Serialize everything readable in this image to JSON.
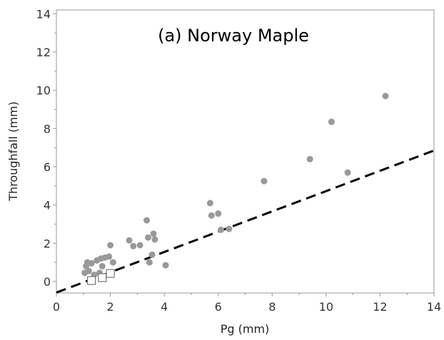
{
  "chart_data": {
    "type": "scatter",
    "title": "(a) Norway Maple",
    "xlabel": "Pg (mm)",
    "ylabel": "Throughfall (mm)",
    "xlim": [
      0,
      14
    ],
    "ylim": [
      -0.6,
      14.2
    ],
    "x_ticks": [
      "0",
      "2",
      "4",
      "6",
      "8",
      "10",
      "12",
      "14"
    ],
    "y_ticks": [
      "0",
      "2",
      "4",
      "6",
      "8",
      "10",
      "12",
      "14"
    ],
    "grid": false,
    "series": [
      {
        "marker": "filled-circle",
        "color": "#999999",
        "points": [
          [
            1.05,
            0.45
          ],
          [
            1.1,
            0.8
          ],
          [
            1.15,
            1.0
          ],
          [
            1.2,
            0.55
          ],
          [
            1.3,
            0.95
          ],
          [
            1.4,
            0.35
          ],
          [
            1.5,
            1.1
          ],
          [
            1.6,
            0.45
          ],
          [
            1.65,
            1.2
          ],
          [
            1.7,
            0.8
          ],
          [
            1.8,
            1.25
          ],
          [
            1.95,
            1.3
          ],
          [
            2.0,
            1.9
          ],
          [
            2.1,
            1.0
          ],
          [
            2.7,
            2.15
          ],
          [
            2.85,
            1.85
          ],
          [
            3.1,
            1.9
          ],
          [
            3.35,
            3.2
          ],
          [
            3.4,
            2.3
          ],
          [
            3.45,
            1.0
          ],
          [
            3.55,
            1.4
          ],
          [
            3.6,
            2.5
          ],
          [
            3.65,
            2.2
          ],
          [
            4.05,
            0.85
          ],
          [
            5.7,
            4.1
          ],
          [
            5.75,
            3.45
          ],
          [
            6.0,
            3.55
          ],
          [
            6.1,
            2.7
          ],
          [
            6.4,
            2.75
          ],
          [
            7.7,
            5.25
          ],
          [
            9.4,
            6.4
          ],
          [
            10.2,
            8.35
          ],
          [
            10.8,
            5.7
          ],
          [
            12.2,
            9.7
          ]
        ]
      },
      {
        "marker": "open-square",
        "color": "#999999",
        "points": [
          [
            1.3,
            0.05
          ],
          [
            1.7,
            0.2
          ],
          [
            2.0,
            0.42
          ]
        ]
      }
    ],
    "reference_line": {
      "style": "dashed",
      "color": "#000000",
      "points": [
        [
          0,
          -0.58
        ],
        [
          14,
          6.85
        ]
      ]
    }
  }
}
